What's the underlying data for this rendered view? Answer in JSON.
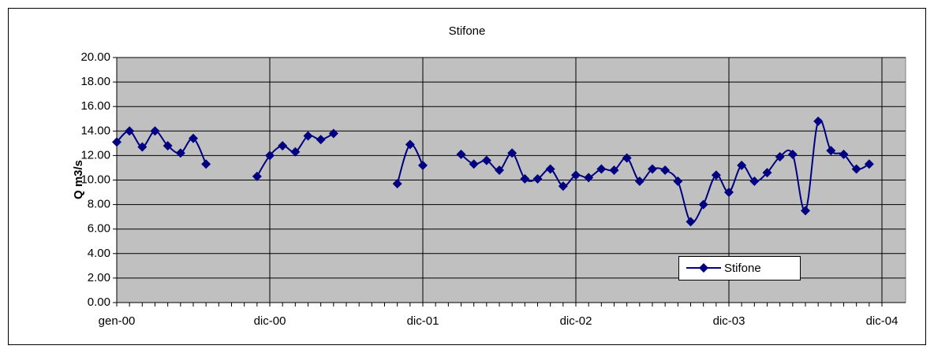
{
  "chart_data": {
    "type": "line",
    "title": "Stifone",
    "y_label": "Q m3/s",
    "categories": [
      "gen-00",
      null,
      null,
      null,
      null,
      null,
      null,
      null,
      null,
      null,
      null,
      null,
      "dic-00",
      null,
      null,
      null,
      null,
      null,
      null,
      null,
      null,
      null,
      null,
      null,
      "dic-01",
      null,
      null,
      null,
      null,
      null,
      null,
      null,
      null,
      null,
      null,
      null,
      "dic-02",
      null,
      null,
      null,
      null,
      null,
      null,
      null,
      null,
      null,
      null,
      null,
      "dic-03",
      null,
      null,
      null,
      null,
      null,
      null,
      null,
      null,
      null,
      null,
      null,
      "dic-04"
    ],
    "series": [
      {
        "name": "Stifone",
        "color": "#000080",
        "values": [
          13.1,
          14.0,
          12.7,
          14.0,
          12.8,
          12.2,
          13.4,
          11.3,
          null,
          null,
          null,
          10.3,
          12.0,
          12.8,
          12.3,
          13.6,
          13.3,
          13.8,
          null,
          null,
          null,
          null,
          9.7,
          12.9,
          11.2,
          null,
          null,
          12.1,
          11.3,
          11.6,
          10.8,
          12.2,
          10.1,
          10.1,
          10.9,
          9.5,
          10.4,
          10.2,
          10.9,
          10.8,
          11.8,
          9.9,
          10.9,
          10.8,
          9.9,
          6.6,
          8.0,
          10.4,
          9.0,
          11.2,
          9.9,
          10.6,
          11.9,
          12.1,
          7.5,
          14.8,
          12.4,
          12.1,
          10.9,
          11.3,
          null
        ]
      }
    ],
    "ylim": [
      0,
      20
    ],
    "yticks": [
      {
        "value": 0,
        "label": "0.00"
      },
      {
        "value": 2,
        "label": "2.00"
      },
      {
        "value": 4,
        "label": "4.00"
      },
      {
        "value": 6,
        "label": "6.00"
      },
      {
        "value": 8,
        "label": "8.00"
      },
      {
        "value": 10,
        "label": "10.00"
      },
      {
        "value": 12,
        "label": "12.00"
      },
      {
        "value": 14,
        "label": "14.00"
      },
      {
        "value": 16,
        "label": "16.00"
      },
      {
        "value": 18,
        "label": "18.00"
      },
      {
        "value": 20,
        "label": "20.00"
      }
    ],
    "grid": true,
    "legend": "lower right",
    "plot_background": "#c0c0c0"
  }
}
